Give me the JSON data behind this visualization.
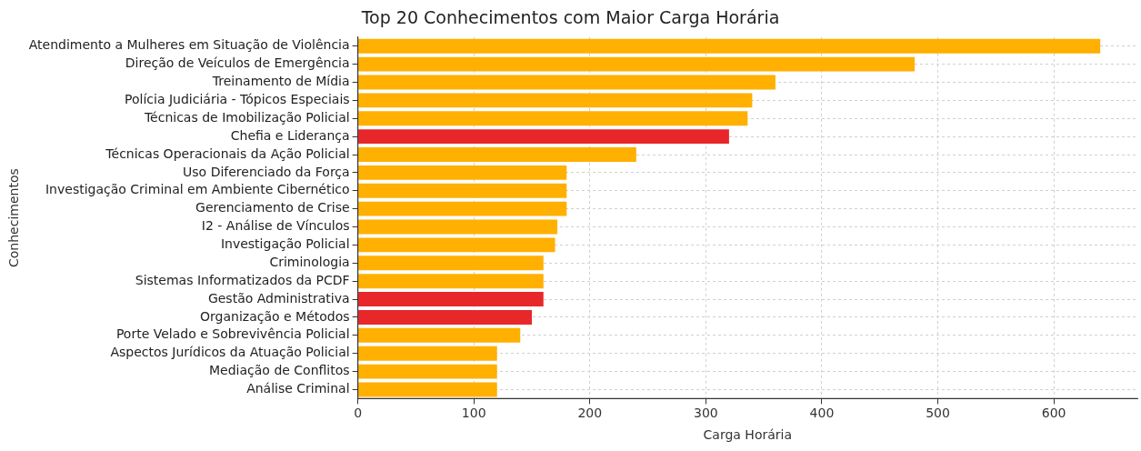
{
  "chart_data": {
    "type": "bar",
    "orientation": "horizontal",
    "title": "Top 20 Conhecimentos com Maior Carga Horária",
    "xlabel": "Carga Horária",
    "ylabel": "Conhecimentos",
    "categories": [
      "Atendimento a Mulheres em Situação de Violência",
      "Direção de Veículos de Emergência",
      "Treinamento de Mídia",
      "Polícia Judiciária - Tópicos Especiais",
      "Técnicas de Imobilização Policial",
      "Chefia e Liderança",
      "Técnicas Operacionais da Ação Policial",
      "Uso Diferenciado da Força",
      "Investigação Criminal em Ambiente Cibernético",
      "Gerenciamento de Crise",
      "I2 - Análise de Vínculos",
      "Investigação Policial",
      "Criminologia",
      "Sistemas Informatizados da PCDF",
      "Gestão Administrativa",
      "Organização e Métodos",
      "Porte Velado e Sobrevivência Policial",
      "Aspectos Jurídicos da Atuação Policial",
      "Mediação de Conflitos",
      "Análise Criminal"
    ],
    "values": [
      640,
      480,
      360,
      340,
      336,
      320,
      240,
      180,
      180,
      180,
      172,
      170,
      160,
      160,
      160,
      150,
      140,
      120,
      120,
      120
    ],
    "colors": [
      "#ffb000",
      "#ffb000",
      "#ffb000",
      "#ffb000",
      "#ffb000",
      "#e8272a",
      "#ffb000",
      "#ffb000",
      "#ffb000",
      "#ffb000",
      "#ffb000",
      "#ffb000",
      "#ffb000",
      "#ffb000",
      "#e8272a",
      "#e8272a",
      "#ffb000",
      "#ffb000",
      "#ffb000",
      "#ffb000"
    ],
    "xlim": [
      0,
      672
    ],
    "xticks": [
      0,
      100,
      200,
      300,
      400,
      500,
      600
    ],
    "grid": true
  }
}
